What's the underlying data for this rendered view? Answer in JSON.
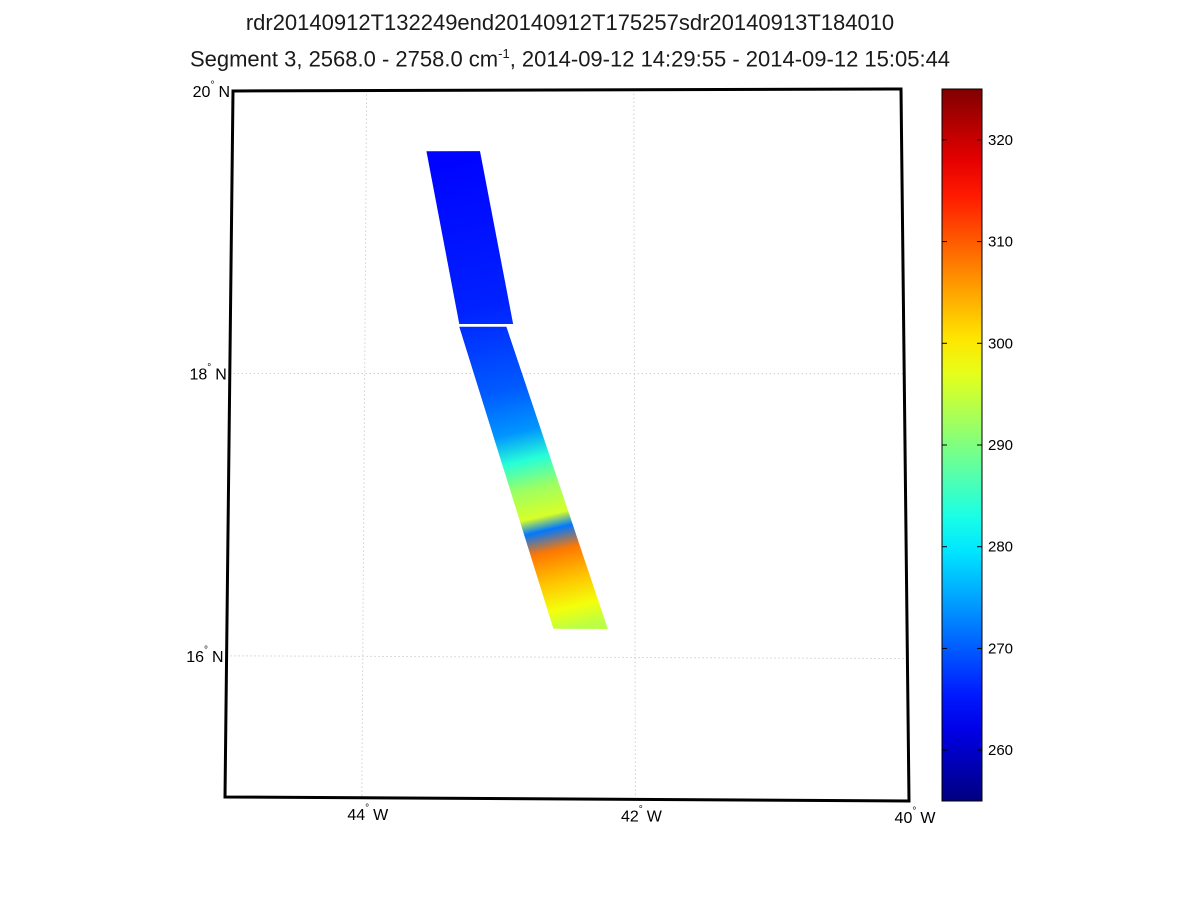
{
  "chart_data": {
    "type": "heatmap",
    "title": "rdr20140912T132249end20140912T175257sdr20140913T184010",
    "subtitle": {
      "prefix": "Segment 3, 2568.0 - 2758.0 cm",
      "sup": "-1",
      "suffix": ", 2014-09-12 14:29:55 - 2014-09-12 15:05:44"
    },
    "map": {
      "lon_range": [
        -45,
        -40
      ],
      "lat_range": [
        15,
        20
      ],
      "grid": true,
      "x_ticks": [
        {
          "value": -44,
          "num": "44",
          "hem": "W"
        },
        {
          "value": -42,
          "num": "42",
          "hem": "W"
        },
        {
          "value": -40,
          "num": "40",
          "hem": "W"
        }
      ],
      "y_ticks": [
        {
          "value": 20,
          "num": "20",
          "hem": "N"
        },
        {
          "value": 18,
          "num": "18",
          "hem": "N"
        },
        {
          "value": 16,
          "num": "16",
          "hem": "N"
        }
      ]
    },
    "swath": {
      "description_segments": [
        {
          "lon_left_top": -43.55,
          "lon_right_top": -43.15,
          "lat_top": 19.57,
          "lon_left_bot": -43.3,
          "lon_right_bot": -42.9,
          "lat_bot": 18.35
        },
        {
          "lon_left_top": -43.3,
          "lon_right_top": -42.95,
          "lat_top": 18.33,
          "lon_left_bot": -42.6,
          "lon_right_bot": -42.2,
          "lat_bot": 16.2
        }
      ],
      "values_by_lat": [
        {
          "lat": 19.5,
          "value": 264
        },
        {
          "lat": 19.0,
          "value": 265
        },
        {
          "lat": 18.5,
          "value": 266
        },
        {
          "lat": 18.2,
          "value": 268
        },
        {
          "lat": 17.9,
          "value": 270
        },
        {
          "lat": 17.6,
          "value": 274
        },
        {
          "lat": 17.4,
          "value": 284
        },
        {
          "lat": 17.2,
          "value": 292
        },
        {
          "lat": 17.0,
          "value": 296
        },
        {
          "lat": 16.9,
          "value": 272
        },
        {
          "lat": 16.75,
          "value": 308
        },
        {
          "lat": 16.55,
          "value": 303
        },
        {
          "lat": 16.35,
          "value": 298
        },
        {
          "lat": 16.2,
          "value": 294
        }
      ]
    },
    "colorbar": {
      "min": 255,
      "max": 325,
      "ticks": [
        260,
        270,
        280,
        290,
        300,
        310,
        320
      ],
      "colormap": "jet"
    }
  }
}
